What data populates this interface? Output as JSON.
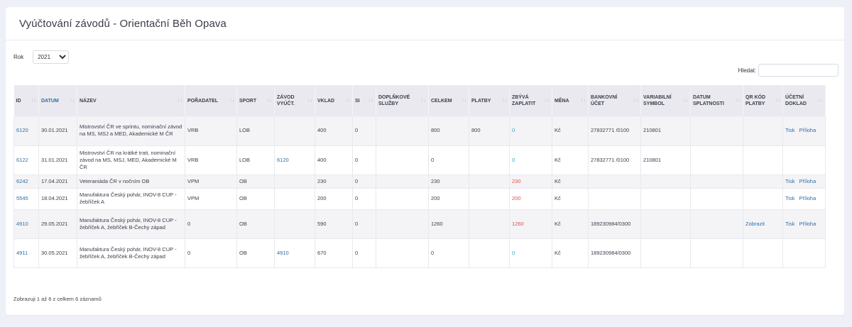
{
  "title": "Vyúčtování závodů - Orientační Běh Opava",
  "filter": {
    "year_label": "Rok",
    "year_value": "2021"
  },
  "search": {
    "label": "Hledat:",
    "placeholder": ""
  },
  "columns": [
    "ID",
    "DATUM",
    "NÁZEV",
    "POŘADATEL",
    "SPORT",
    "ZÁVOD VYÚČT.",
    "VKLAD",
    "SI",
    "DOPLŇKOVÉ SLUŽBY",
    "CELKEM",
    "PLATBY",
    "ZBÝVÁ ZAPLATIT",
    "MĚNA",
    "BANKOVNÍ ÚČET",
    "VARIABILNÍ SYMBOL",
    "DATUM SPLATNOSTI",
    "QR KÓD PLATBY",
    "ÚČETNÍ DOKLAD"
  ],
  "rows": [
    {
      "id": "6120",
      "date": "30.01.2021",
      "name": "Mistrovství ČR ve sprintu, nominační závod na MS, MSJ a MED, Akademické M ČR",
      "org": "VRB",
      "sport": "LOB",
      "race": "",
      "fee": "400",
      "si": "0",
      "extra": "",
      "total": "800",
      "paid": "800",
      "remain": "0",
      "curr": "Kč",
      "bank": "27832771 /0100",
      "vs": "210801",
      "due": "",
      "qr": "",
      "print": "Tisk",
      "attach": "Příloha"
    },
    {
      "id": "6122",
      "date": "31.01.2021",
      "name": "Mistrovství ČR na krátké trati, nominační závod na MS, MSJ, MED, Akademické M ČR",
      "org": "VRB",
      "sport": "LOB",
      "race": "6120",
      "fee": "400",
      "si": "0",
      "extra": "",
      "total": "0",
      "paid": "",
      "remain": "0",
      "curr": "Kč",
      "bank": "27832771 /0100",
      "vs": "210801",
      "due": "",
      "qr": "",
      "print": "",
      "attach": ""
    },
    {
      "id": "6242",
      "date": "17.04.2021",
      "name": "Veteraniáda ČR v nočním OB",
      "org": "VPM",
      "sport": "OB",
      "race": "",
      "fee": "230",
      "si": "0",
      "extra": "",
      "total": "230",
      "paid": "",
      "remain": "230",
      "curr": "Kč",
      "bank": "",
      "vs": "",
      "due": "",
      "qr": "",
      "print": "Tisk",
      "attach": "Příloha"
    },
    {
      "id": "5545",
      "date": "18.04.2021",
      "name": "Manufaktura Český pohár, INOV-8 CUP - žebříček A",
      "org": "VPM",
      "sport": "OB",
      "race": "",
      "fee": "200",
      "si": "0",
      "extra": "",
      "total": "200",
      "paid": "",
      "remain": "200",
      "curr": "Kč",
      "bank": "",
      "vs": "",
      "due": "",
      "qr": "",
      "print": "Tisk",
      "attach": "Příloha"
    },
    {
      "id": "4910",
      "date": "29.05.2021",
      "name": "Manufaktura Český pohár, INOV-8 CUP - žebříček A, žebříček B-Čechy západ",
      "org": "0",
      "sport": "OB",
      "race": "",
      "fee": "590",
      "si": "0",
      "extra": "",
      "total": "1260",
      "paid": "",
      "remain": "1260",
      "curr": "Kč",
      "bank": "189230984/0300",
      "vs": "",
      "due": "",
      "qr": "Zobrazit",
      "print": "Tisk",
      "attach": "Příloha"
    },
    {
      "id": "4911",
      "date": "30.05.2021",
      "name": "Manufaktura Český pohár, INOV-8 CUP - žebříček A, žebříček B-Čechy západ",
      "org": "0",
      "sport": "OB",
      "race": "4910",
      "fee": "670",
      "si": "0",
      "extra": "",
      "total": "0",
      "paid": "",
      "remain": "0",
      "curr": "Kč",
      "bank": "189230984/0300",
      "vs": "",
      "due": "",
      "qr": "",
      "print": "",
      "attach": ""
    }
  ],
  "info": "Zobrazuji 1 až 6 z celkem 6 záznamů",
  "colors": {
    "link": "#2f6ea5",
    "zero": "#2aa6c4",
    "owe": "#e54d4d"
  },
  "icons": {
    "sort": "sort-arrows-icon",
    "dropdown": "chevron-down-icon"
  }
}
